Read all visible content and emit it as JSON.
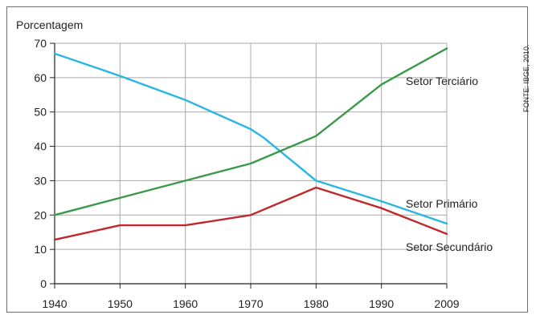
{
  "source_credit": "FONTE: IBGE, 2010.",
  "chart_data": {
    "type": "line",
    "title": "",
    "xlabel": "",
    "ylabel": "Porcentagem",
    "x": [
      1940,
      1950,
      1960,
      1970,
      1980,
      1990,
      2009
    ],
    "x_tick_labels": [
      "1940",
      "1950",
      "1960",
      "1970",
      "1980",
      "1990",
      "2009"
    ],
    "ylim": [
      0,
      70
    ],
    "y_ticks": [
      0,
      10,
      20,
      30,
      40,
      50,
      60,
      70
    ],
    "grid": true,
    "series": [
      {
        "name": "Setor Primário",
        "color": "#29b6e6",
        "points": [
          [
            1940,
            67
          ],
          [
            1950,
            60.5
          ],
          [
            1960,
            53.5
          ],
          [
            1970,
            45
          ],
          [
            1972,
            42.5
          ],
          [
            1980,
            30
          ],
          [
            1990,
            24
          ],
          [
            2009,
            17.5
          ]
        ]
      },
      {
        "name": "Setor Terciário",
        "color": "#3a9a4a",
        "points": [
          [
            1940,
            20
          ],
          [
            1950,
            25
          ],
          [
            1960,
            30
          ],
          [
            1970,
            35
          ],
          [
            1980,
            43
          ],
          [
            1990,
            58
          ],
          [
            2009,
            68.5
          ]
        ]
      },
      {
        "name": "Setor Secundário",
        "color": "#c0282b",
        "points": [
          [
            1940,
            12.8
          ],
          [
            1950,
            17
          ],
          [
            1960,
            17
          ],
          [
            1970,
            20
          ],
          [
            1980,
            28
          ],
          [
            1990,
            22
          ],
          [
            2009,
            14.5
          ]
        ]
      }
    ],
    "annotations": [
      "Setor Terciário",
      "Setor Primário",
      "Setor Secundário"
    ]
  }
}
